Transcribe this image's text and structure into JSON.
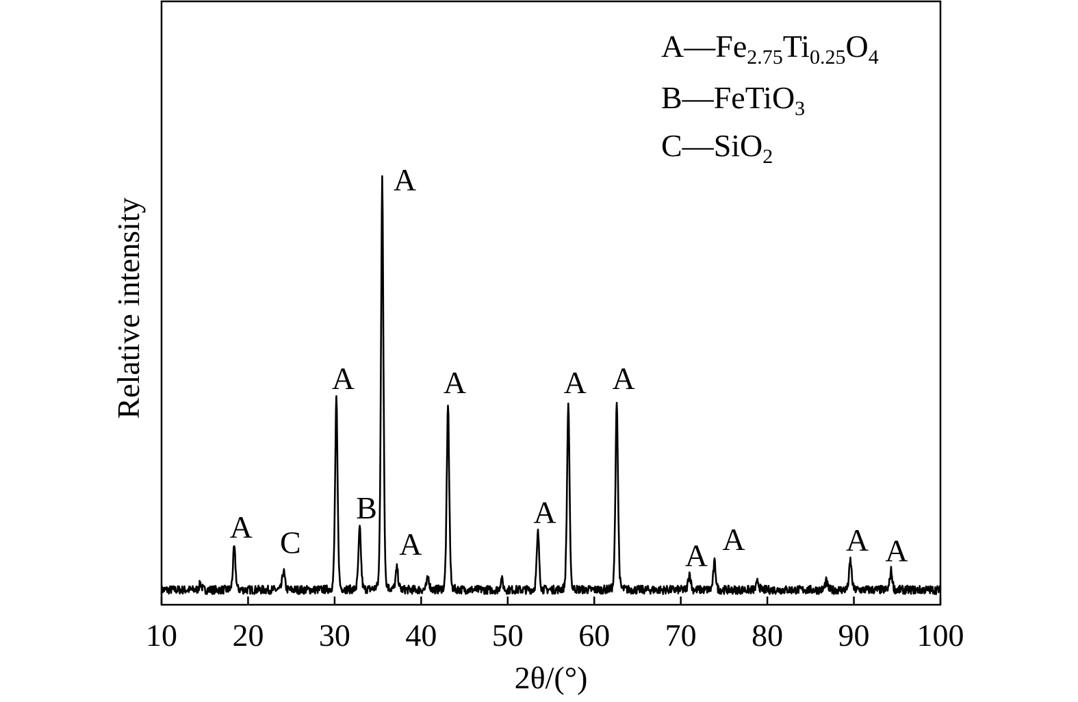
{
  "chart_data": {
    "type": "line",
    "xlabel": "2θ/(°)",
    "ylabel": "Relative intensity",
    "xlim": [
      10,
      100
    ],
    "ylim": [
      0,
      100
    ],
    "xticks": [
      10,
      20,
      30,
      40,
      50,
      60,
      70,
      80,
      90,
      100
    ],
    "y_tick_labels_shown": false,
    "grid": false,
    "legend_position": "top-right",
    "legend": [
      {
        "key": "A",
        "dash": "—",
        "formula_parts": [
          [
            "Fe",
            false
          ],
          [
            "2.75",
            true
          ],
          [
            "Ti",
            false
          ],
          [
            "0.25",
            true
          ],
          [
            "O",
            false
          ],
          [
            "4",
            true
          ]
        ]
      },
      {
        "key": "B",
        "dash": "—",
        "formula_parts": [
          [
            "FeTiO",
            false
          ],
          [
            "3",
            true
          ]
        ]
      },
      {
        "key": "C",
        "dash": "—",
        "formula_parts": [
          [
            "SiO",
            false
          ],
          [
            "2",
            true
          ]
        ]
      }
    ],
    "baseline": 3.5,
    "noise_amplitude": 1.0,
    "peaks": [
      {
        "x": 14.5,
        "y": 5.0,
        "label": ""
      },
      {
        "x": 18.4,
        "y": 13.5,
        "label": "A"
      },
      {
        "x": 24.1,
        "y": 8.0,
        "label": "C"
      },
      {
        "x": 30.2,
        "y": 48.5,
        "label": "A"
      },
      {
        "x": 32.9,
        "y": 18.0,
        "label": "B"
      },
      {
        "x": 35.5,
        "y": 100.0,
        "label": "A"
      },
      {
        "x": 37.2,
        "y": 8.5,
        "label": "A"
      },
      {
        "x": 40.8,
        "y": 6.5,
        "label": ""
      },
      {
        "x": 43.1,
        "y": 47.5,
        "label": "A"
      },
      {
        "x": 49.3,
        "y": 6.0,
        "label": ""
      },
      {
        "x": 53.5,
        "y": 17.0,
        "label": "A"
      },
      {
        "x": 57.0,
        "y": 47.5,
        "label": "A"
      },
      {
        "x": 62.6,
        "y": 48.5,
        "label": "A"
      },
      {
        "x": 71.0,
        "y": 7.5,
        "label": "A"
      },
      {
        "x": 73.9,
        "y": 10.0,
        "label": "A"
      },
      {
        "x": 78.9,
        "y": 5.5,
        "label": ""
      },
      {
        "x": 86.8,
        "y": 5.5,
        "label": ""
      },
      {
        "x": 89.6,
        "y": 10.5,
        "label": "A"
      },
      {
        "x": 94.3,
        "y": 8.0,
        "label": "A"
      }
    ]
  }
}
